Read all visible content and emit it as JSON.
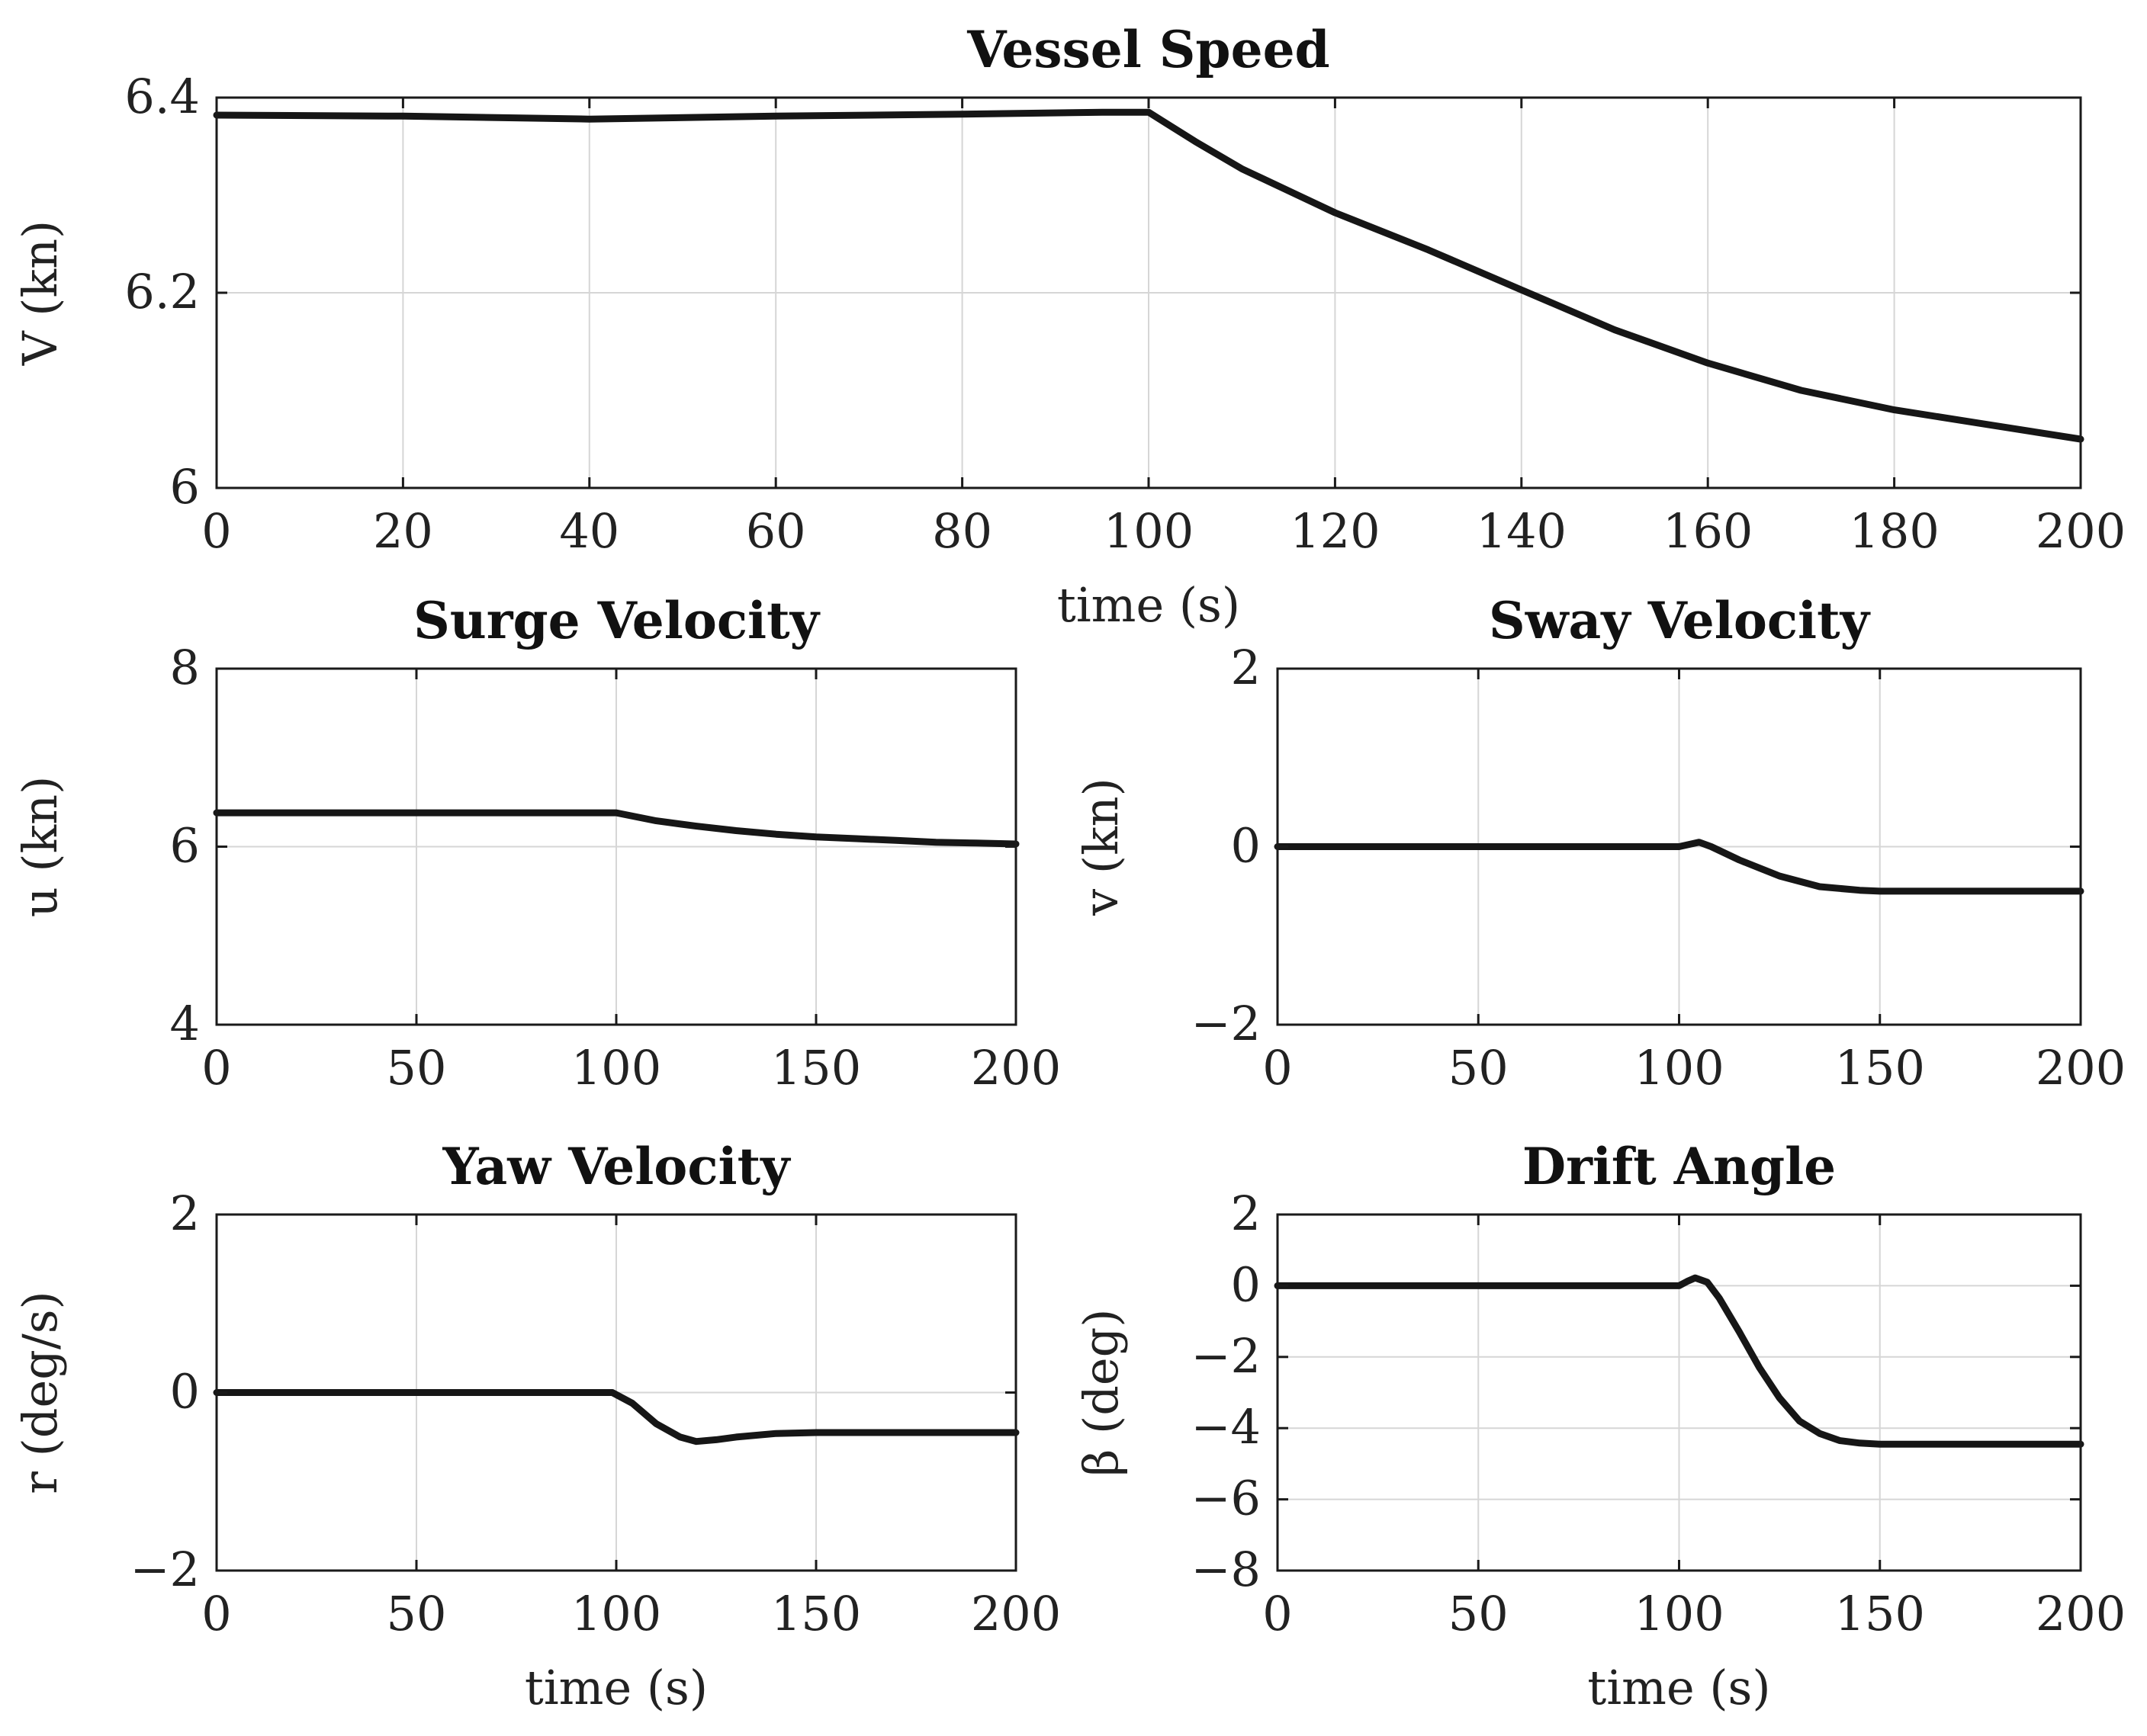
{
  "chart_data": [
    {
      "type": "line",
      "title": "Vessel Speed",
      "ylabel": "V (kn)",
      "xlabel": "time (s)",
      "xlim": [
        0,
        200
      ],
      "ylim": [
        6,
        6.4
      ],
      "xticks": [
        "0",
        "20",
        "40",
        "60",
        "80",
        "100",
        "120",
        "140",
        "160",
        "180",
        "200"
      ],
      "yticks": [
        "6",
        "6.2",
        "6.4"
      ],
      "grid": true,
      "series": [
        {
          "name": "V",
          "x": [
            0,
            20,
            40,
            60,
            80,
            95,
            100,
            105,
            110,
            120,
            130,
            140,
            150,
            160,
            170,
            180,
            190,
            200
          ],
          "y": [
            6.382,
            6.381,
            6.378,
            6.381,
            6.383,
            6.385,
            6.385,
            6.355,
            6.327,
            6.282,
            6.244,
            6.203,
            6.162,
            6.128,
            6.1,
            6.08,
            6.065,
            6.05
          ]
        }
      ]
    },
    {
      "type": "line",
      "title": "Surge Velocity",
      "ylabel": "u (kn)",
      "xlabel": "",
      "xlim": [
        0,
        200
      ],
      "ylim": [
        4,
        8
      ],
      "xticks": [
        "0",
        "50",
        "100",
        "150",
        "200"
      ],
      "yticks": [
        "4",
        "6",
        "8"
      ],
      "grid": true,
      "series": [
        {
          "name": "u",
          "x": [
            0,
            50,
            100,
            110,
            120,
            130,
            140,
            150,
            160,
            170,
            180,
            190,
            200
          ],
          "y": [
            6.38,
            6.38,
            6.38,
            6.29,
            6.23,
            6.18,
            6.14,
            6.11,
            6.09,
            6.07,
            6.05,
            6.04,
            6.03
          ]
        }
      ]
    },
    {
      "type": "line",
      "title": "Sway Velocity",
      "ylabel": "v (kn)",
      "xlabel": "",
      "xlim": [
        0,
        200
      ],
      "ylim": [
        -2,
        2
      ],
      "xticks": [
        "0",
        "50",
        "100",
        "150",
        "200"
      ],
      "yticks": [
        "-2",
        "0",
        "2"
      ],
      "grid": true,
      "series": [
        {
          "name": "v",
          "x": [
            0,
            50,
            100,
            103,
            105,
            108,
            115,
            125,
            135,
            145,
            150,
            160,
            200
          ],
          "y": [
            0,
            0,
            0,
            0.03,
            0.05,
            0,
            -0.15,
            -0.33,
            -0.45,
            -0.49,
            -0.5,
            -0.5,
            -0.5
          ]
        }
      ]
    },
    {
      "type": "line",
      "title": "Yaw Velocity",
      "ylabel": "r (deg/s)",
      "xlabel": "time (s)",
      "xlim": [
        0,
        200
      ],
      "ylim": [
        -2,
        2
      ],
      "xticks": [
        "0",
        "50",
        "100",
        "150",
        "200"
      ],
      "yticks": [
        "-2",
        "0",
        "2"
      ],
      "grid": true,
      "series": [
        {
          "name": "r",
          "x": [
            0,
            50,
            99,
            104,
            110,
            116,
            120,
            125,
            130,
            140,
            150,
            170,
            200
          ],
          "y": [
            0,
            0,
            0,
            -0.12,
            -0.35,
            -0.5,
            -0.55,
            -0.53,
            -0.5,
            -0.46,
            -0.45,
            -0.45,
            -0.45
          ]
        }
      ]
    },
    {
      "type": "line",
      "title": "Drift Angle",
      "ylabel": "β (deg)",
      "xlabel": "time (s)",
      "xlim": [
        0,
        200
      ],
      "ylim": [
        -8,
        2
      ],
      "xticks": [
        "0",
        "50",
        "100",
        "150",
        "200"
      ],
      "yticks": [
        "-8",
        "-6",
        "-4",
        "-2",
        "0",
        "2"
      ],
      "grid": true,
      "series": [
        {
          "name": "beta",
          "x": [
            0,
            50,
            100,
            102,
            104,
            107,
            110,
            115,
            120,
            125,
            130,
            135,
            140,
            145,
            150,
            160,
            200
          ],
          "y": [
            0,
            0,
            0,
            0.12,
            0.22,
            0.1,
            -0.35,
            -1.3,
            -2.3,
            -3.15,
            -3.8,
            -4.15,
            -4.35,
            -4.42,
            -4.45,
            -4.45,
            -4.45
          ]
        }
      ]
    }
  ]
}
